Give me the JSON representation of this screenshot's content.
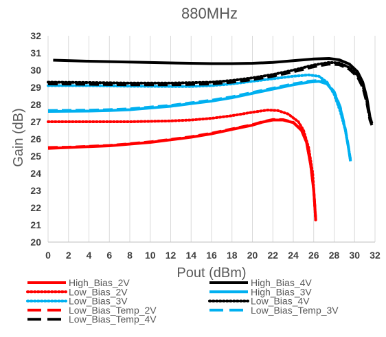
{
  "chart_data": {
    "type": "line",
    "title": "880MHz",
    "xlabel": "Pout (dBm)",
    "ylabel": "Gain (dB)",
    "xlim": [
      0,
      32
    ],
    "ylim": [
      20,
      32
    ],
    "xticks": [
      "0",
      "2",
      "4",
      "6",
      "8",
      "10",
      "12",
      "14",
      "16",
      "18",
      "20",
      "22",
      "24",
      "26",
      "28",
      "30",
      "32"
    ],
    "yticks": [
      "20",
      "21",
      "22",
      "23",
      "24",
      "25",
      "26",
      "27",
      "28",
      "29",
      "30",
      "31",
      "32"
    ],
    "grid": "vertical",
    "legend_position": "bottom",
    "series": [
      {
        "name": "High_Bias_2V",
        "color": "#ff0000",
        "style": "solid",
        "points": [
          [
            0,
            25.45
          ],
          [
            2,
            25.5
          ],
          [
            4,
            25.55
          ],
          [
            6,
            25.6
          ],
          [
            8,
            25.7
          ],
          [
            10,
            25.8
          ],
          [
            12,
            25.95
          ],
          [
            14,
            26.1
          ],
          [
            16,
            26.3
          ],
          [
            18,
            26.55
          ],
          [
            20,
            26.8
          ],
          [
            21,
            26.98
          ],
          [
            22,
            27.1
          ],
          [
            23,
            27.1
          ],
          [
            24,
            26.95
          ],
          [
            24.8,
            26.5
          ],
          [
            25.3,
            25.8
          ],
          [
            25.7,
            24.5
          ],
          [
            26,
            23
          ],
          [
            26.2,
            21.25
          ]
        ]
      },
      {
        "name": "High_Bias_4V",
        "color": "#000000",
        "style": "solid",
        "points": [
          [
            0.5,
            30.58
          ],
          [
            4,
            30.52
          ],
          [
            8,
            30.47
          ],
          [
            12,
            30.42
          ],
          [
            16,
            30.38
          ],
          [
            18,
            30.38
          ],
          [
            20,
            30.4
          ],
          [
            22,
            30.45
          ],
          [
            24,
            30.55
          ],
          [
            26,
            30.65
          ],
          [
            27.5,
            30.68
          ],
          [
            28.5,
            30.6
          ],
          [
            29.5,
            30.35
          ],
          [
            30.3,
            29.9
          ],
          [
            30.8,
            29.3
          ],
          [
            31.2,
            28.4
          ],
          [
            31.5,
            27.3
          ],
          [
            31.7,
            26.9
          ]
        ]
      },
      {
        "name": "Low_Bias_2V",
        "color": "#ff0000",
        "style": "dotted",
        "points": [
          [
            0,
            27.0
          ],
          [
            4,
            27.0
          ],
          [
            8,
            27.0
          ],
          [
            12,
            27.05
          ],
          [
            14,
            27.1
          ],
          [
            16,
            27.2
          ],
          [
            18,
            27.35
          ],
          [
            20,
            27.55
          ],
          [
            21.5,
            27.68
          ],
          [
            22.5,
            27.65
          ],
          [
            23.5,
            27.45
          ],
          [
            24.5,
            27.0
          ],
          [
            25,
            26.5
          ],
          [
            25.5,
            25.5
          ],
          [
            25.9,
            24
          ],
          [
            26.2,
            21.2
          ]
        ]
      },
      {
        "name": "High_Bias_3V",
        "color": "#00b0f0",
        "style": "solid",
        "points": [
          [
            0,
            27.6
          ],
          [
            4,
            27.62
          ],
          [
            6,
            27.65
          ],
          [
            8,
            27.7
          ],
          [
            10,
            27.8
          ],
          [
            12,
            27.9
          ],
          [
            14,
            28.05
          ],
          [
            16,
            28.2
          ],
          [
            18,
            28.4
          ],
          [
            20,
            28.65
          ],
          [
            22,
            28.9
          ],
          [
            24,
            29.15
          ],
          [
            25.5,
            29.3
          ],
          [
            26.5,
            29.35
          ],
          [
            27.3,
            29.2
          ],
          [
            28,
            28.7
          ],
          [
            28.6,
            27.8
          ],
          [
            29.1,
            26.5
          ],
          [
            29.4,
            25.5
          ],
          [
            29.6,
            24.7
          ]
        ]
      },
      {
        "name": "Low_Bias_3V",
        "color": "#00b0f0",
        "style": "dotted",
        "points": [
          [
            0,
            29.1
          ],
          [
            4,
            29.1
          ],
          [
            8,
            29.07
          ],
          [
            12,
            29.05
          ],
          [
            14,
            29.05
          ],
          [
            16,
            29.1
          ],
          [
            18,
            29.2
          ],
          [
            20,
            29.35
          ],
          [
            22,
            29.5
          ],
          [
            24,
            29.65
          ],
          [
            25.5,
            29.72
          ],
          [
            26.5,
            29.65
          ],
          [
            27.3,
            29.3
          ],
          [
            28,
            28.6
          ],
          [
            28.6,
            27.6
          ],
          [
            29.1,
            26.5
          ],
          [
            29.4,
            25.5
          ],
          [
            29.6,
            24.8
          ]
        ]
      },
      {
        "name": "Low_Bias_4V",
        "color": "#000000",
        "style": "dotted",
        "points": [
          [
            0,
            29.3
          ],
          [
            4,
            29.28
          ],
          [
            8,
            29.25
          ],
          [
            12,
            29.25
          ],
          [
            16,
            29.3
          ],
          [
            18,
            29.4
          ],
          [
            20,
            29.55
          ],
          [
            22,
            29.75
          ],
          [
            24,
            30.0
          ],
          [
            26,
            30.3
          ],
          [
            27.5,
            30.45
          ],
          [
            28.5,
            30.42
          ],
          [
            29.5,
            30.15
          ],
          [
            30.3,
            29.7
          ],
          [
            30.8,
            29.1
          ],
          [
            31.2,
            28.2
          ],
          [
            31.5,
            27.2
          ],
          [
            31.7,
            26.85
          ]
        ]
      },
      {
        "name": "Low_Bias_Temp_2V",
        "color": "#ff0000",
        "style": "dashed",
        "points": [
          [
            0,
            25.5
          ],
          [
            2,
            25.52
          ],
          [
            4,
            25.57
          ],
          [
            6,
            25.62
          ],
          [
            8,
            25.72
          ],
          [
            10,
            25.83
          ],
          [
            12,
            25.97
          ],
          [
            14,
            26.13
          ],
          [
            16,
            26.33
          ],
          [
            18,
            26.58
          ],
          [
            20,
            26.83
          ],
          [
            21,
            27.0
          ],
          [
            22,
            27.13
          ],
          [
            23,
            27.12
          ],
          [
            24,
            26.97
          ],
          [
            24.8,
            26.52
          ],
          [
            25.3,
            25.82
          ],
          [
            25.7,
            24.52
          ],
          [
            26,
            23.02
          ],
          [
            26.2,
            21.3
          ]
        ]
      },
      {
        "name": "Low_Bias_Temp_3V",
        "color": "#00b0f0",
        "style": "dashed",
        "points": [
          [
            0,
            27.65
          ],
          [
            4,
            27.67
          ],
          [
            6,
            27.7
          ],
          [
            8,
            27.75
          ],
          [
            10,
            27.85
          ],
          [
            12,
            27.95
          ],
          [
            14,
            28.1
          ],
          [
            16,
            28.25
          ],
          [
            18,
            28.45
          ],
          [
            20,
            28.7
          ],
          [
            22,
            28.95
          ],
          [
            24,
            29.2
          ],
          [
            25.5,
            29.35
          ],
          [
            26.5,
            29.4
          ],
          [
            27.3,
            29.25
          ],
          [
            28,
            28.75
          ],
          [
            28.6,
            27.85
          ],
          [
            29.1,
            26.55
          ],
          [
            29.4,
            25.55
          ],
          [
            29.6,
            24.75
          ]
        ]
      },
      {
        "name": "Low_Bias_Temp_4V",
        "color": "#000000",
        "style": "dashed",
        "points": [
          [
            0,
            29.2
          ],
          [
            4,
            29.18
          ],
          [
            8,
            29.15
          ],
          [
            12,
            29.15
          ],
          [
            16,
            29.2
          ],
          [
            18,
            29.3
          ],
          [
            20,
            29.45
          ],
          [
            22,
            29.65
          ],
          [
            24,
            29.9
          ],
          [
            26,
            30.2
          ],
          [
            27.5,
            30.35
          ],
          [
            28.5,
            30.32
          ],
          [
            29.5,
            30.05
          ],
          [
            30.3,
            29.6
          ],
          [
            30.8,
            29.0
          ],
          [
            31.2,
            28.1
          ],
          [
            31.5,
            27.1
          ],
          [
            31.7,
            26.8
          ]
        ]
      }
    ]
  }
}
